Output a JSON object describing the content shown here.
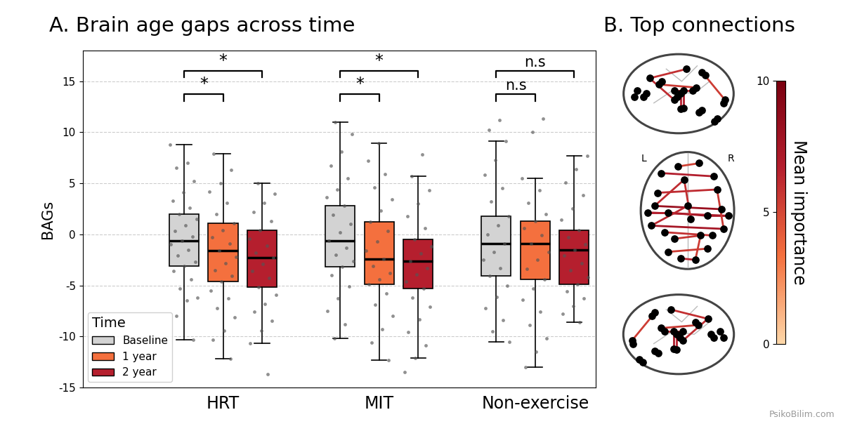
{
  "chart_data": [
    {
      "type": "box",
      "title": "A. Brain age gaps across time",
      "y_label": "BAGs",
      "categories": [
        "HRT",
        "MIT",
        "Non-exercise"
      ],
      "ylim": [
        -15,
        18
      ],
      "yticks": [
        -15,
        -10,
        -5,
        0,
        5,
        10,
        15
      ],
      "grid": "y",
      "legend": "lower left",
      "legend_title": "Time",
      "series": [
        {
          "name": "Baseline",
          "color": "#d3d3d3",
          "boxes": [
            {
              "median": -0.6,
              "q1": -3.1,
              "q3": 2.0,
              "whislo": -10.3,
              "whishi": 8.8,
              "points": [
                8.8,
                7.0,
                6.5,
                5.2,
                4.1,
                3.3,
                2.6,
                2.0,
                1.5,
                0.9,
                0.3,
                -0.2,
                -0.6,
                -1.0,
                -1.5,
                -2.1,
                -2.7,
                -3.1,
                -3.6,
                -4.4,
                -5.3,
                -6.2,
                -6.5,
                -8.0,
                -10.3
              ]
            },
            {
              "median": -0.6,
              "q1": -3.2,
              "q3": 2.8,
              "whislo": -10.2,
              "whishi": 11.0,
              "points": [
                11.0,
                9.8,
                8.1,
                6.7,
                5.5,
                4.4,
                3.6,
                2.8,
                1.9,
                1.0,
                0.2,
                -0.6,
                -1.3,
                -2.0,
                -2.6,
                -3.2,
                -4.0,
                -5.1,
                -6.3,
                -7.5,
                -8.8,
                -10.2
              ]
            },
            {
              "median": -0.9,
              "q1": -4.1,
              "q3": 1.8,
              "whislo": -10.5,
              "whishi": 9.1,
              "points": [
                11.2,
                10.2,
                9.1,
                7.3,
                5.8,
                4.5,
                3.2,
                1.8,
                0.9,
                0.0,
                -0.9,
                -1.7,
                -2.5,
                -3.3,
                -4.1,
                -5.0,
                -6.1,
                -7.2,
                -8.4,
                -9.5,
                -10.5
              ]
            }
          ]
        },
        {
          "name": "1 year",
          "color": "#f4703e",
          "boxes": [
            {
              "median": -1.6,
              "q1": -4.6,
              "q3": 1.1,
              "whislo": -12.2,
              "whishi": 7.9,
              "points": [
                7.9,
                6.3,
                5.0,
                4.2,
                3.1,
                2.0,
                1.1,
                0.4,
                -0.3,
                -0.9,
                -1.6,
                -2.2,
                -2.8,
                -3.5,
                -4.1,
                -4.6,
                -5.5,
                -6.3,
                -7.2,
                -8.1,
                -9.4,
                -10.3,
                -12.2
              ]
            },
            {
              "median": -2.4,
              "q1": -4.9,
              "q3": 1.2,
              "whislo": -12.3,
              "whishi": 8.9,
              "points": [
                8.9,
                7.2,
                5.9,
                4.6,
                3.4,
                2.3,
                1.2,
                0.3,
                -0.7,
                -1.6,
                -2.4,
                -3.1,
                -3.8,
                -4.4,
                -4.9,
                -5.8,
                -6.9,
                -8.0,
                -9.3,
                -10.6,
                -12.3
              ]
            },
            {
              "median": -0.9,
              "q1": -4.4,
              "q3": 1.3,
              "whislo": -13.0,
              "whishi": 5.5,
              "points": [
                11.3,
                10.0,
                5.5,
                4.3,
                3.1,
                2.0,
                1.3,
                0.6,
                -0.1,
                -0.9,
                -1.7,
                -2.5,
                -3.4,
                -4.4,
                -5.3,
                -6.4,
                -7.6,
                -8.9,
                -10.2,
                -11.5,
                -13.0
              ]
            }
          ]
        },
        {
          "name": "2 year",
          "color": "#b51f2e",
          "boxes": [
            {
              "median": -2.3,
              "q1": -5.2,
              "q3": 0.4,
              "whislo": -10.7,
              "whishi": 5.0,
              "points": [
                5.0,
                4.0,
                3.1,
                2.2,
                1.3,
                0.4,
                -0.4,
                -1.1,
                -1.8,
                -2.3,
                -2.9,
                -3.6,
                -4.3,
                -5.2,
                -5.9,
                -6.8,
                -7.6,
                -8.5,
                -9.4,
                -10.7,
                -13.7
              ]
            },
            {
              "median": -2.6,
              "q1": -5.3,
              "q3": -0.5,
              "whislo": -12.1,
              "whishi": 5.7,
              "points": [
                7.8,
                5.7,
                4.3,
                3.0,
                1.8,
                0.6,
                -0.5,
                -1.2,
                -1.9,
                -2.6,
                -3.3,
                -3.9,
                -4.6,
                -5.3,
                -6.2,
                -7.1,
                -8.3,
                -9.6,
                -10.9,
                -12.1,
                -13.5
              ]
            },
            {
              "median": -1.5,
              "q1": -4.9,
              "q3": 0.4,
              "whislo": -8.6,
              "whishi": 7.7,
              "points": [
                7.7,
                6.4,
                5.1,
                3.8,
                2.5,
                1.4,
                0.4,
                -0.3,
                -1.0,
                -1.5,
                -2.1,
                -2.8,
                -3.5,
                -4.2,
                -4.9,
                -5.6,
                -6.3,
                -7.0,
                -7.8,
                -8.6
              ]
            }
          ]
        }
      ],
      "comparisons": [
        {
          "category": "HRT",
          "from": "Baseline",
          "to": "1 year",
          "label": "*"
        },
        {
          "category": "HRT",
          "from": "Baseline",
          "to": "2 year",
          "label": "*"
        },
        {
          "category": "MIT",
          "from": "Baseline",
          "to": "1 year",
          "label": "*"
        },
        {
          "category": "MIT",
          "from": "Baseline",
          "to": "2 year",
          "label": "*"
        },
        {
          "category": "Non-exercise",
          "from": "Baseline",
          "to": "1 year",
          "label": "n.s"
        },
        {
          "category": "Non-exercise",
          "from": "Baseline",
          "to": "2 year",
          "label": "n.s"
        }
      ]
    },
    {
      "type": "connectome",
      "title": "B. Top connections",
      "hemisphere_labels": [
        "L",
        "R"
      ],
      "nodes": [
        [
          -40,
          40,
          10
        ],
        [
          -50,
          -10,
          5
        ],
        [
          -30,
          -20,
          15
        ],
        [
          -55,
          -40,
          20
        ],
        [
          -20,
          -60,
          45
        ],
        [
          -45,
          10,
          35
        ],
        [
          -10,
          -90,
          0
        ],
        [
          -30,
          -80,
          -25
        ],
        [
          40,
          35,
          15
        ],
        [
          52,
          -15,
          10
        ],
        [
          30,
          -25,
          20
        ],
        [
          55,
          -45,
          25
        ],
        [
          20,
          -55,
          50
        ],
        [
          45,
          15,
          30
        ],
        [
          12,
          -92,
          5
        ],
        [
          30,
          -75,
          -30
        ],
        [
          -5,
          30,
          40
        ],
        [
          5,
          -30,
          55
        ],
        [
          -60,
          -20,
          -10
        ],
        [
          62,
          -25,
          -8
        ],
        [
          0,
          -10,
          20
        ],
        [
          -15,
          50,
          20
        ],
        [
          18,
          55,
          10
        ],
        [
          -35,
          -50,
          -15
        ],
        [
          38,
          -55,
          -12
        ]
      ],
      "edges": [
        [
          1,
          9,
          8.2
        ],
        [
          3,
          11,
          7.5
        ],
        [
          0,
          8,
          6.8
        ],
        [
          2,
          10,
          7.9
        ],
        [
          5,
          13,
          6.2
        ],
        [
          4,
          12,
          5.8
        ],
        [
          6,
          14,
          6.5
        ],
        [
          7,
          15,
          5.5
        ],
        [
          18,
          19,
          7.1
        ],
        [
          16,
          17,
          6.0
        ],
        [
          21,
          22,
          5.2
        ],
        [
          20,
          3,
          6.4
        ],
        [
          23,
          24,
          5.9
        ],
        [
          2,
          18,
          6.7
        ],
        [
          10,
          19,
          7.3
        ],
        [
          13,
          11,
          5.6
        ],
        [
          16,
          1,
          6.1
        ],
        [
          12,
          14,
          5.4
        ]
      ],
      "colorbar": {
        "label": "Mean importance",
        "range": [
          0,
          10
        ],
        "ticks": [
          0,
          5,
          10
        ]
      }
    }
  ],
  "watermark": "PsikoBilim.com"
}
